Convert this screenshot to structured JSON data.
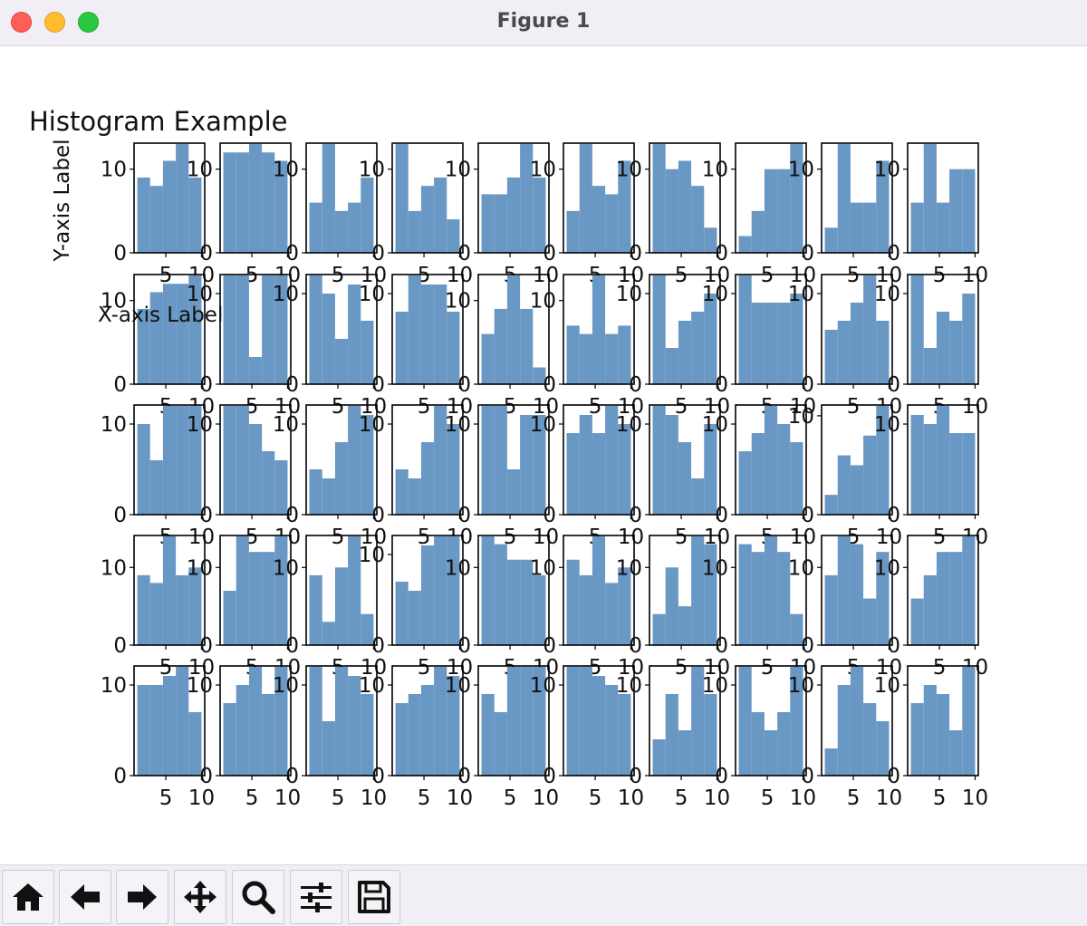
{
  "window": {
    "title": "Figure 1"
  },
  "toolbar": {
    "buttons": [
      {
        "name": "home-button",
        "icon": "home-icon"
      },
      {
        "name": "back-button",
        "icon": "arrow-left-icon"
      },
      {
        "name": "forward-button",
        "icon": "arrow-right-icon"
      },
      {
        "name": "pan-button",
        "icon": "move-icon"
      },
      {
        "name": "zoom-button",
        "icon": "magnifier-icon"
      },
      {
        "name": "configure-subplots-button",
        "icon": "sliders-icon"
      },
      {
        "name": "save-button",
        "icon": "floppy-disk-icon"
      }
    ]
  },
  "chart_data": {
    "type": "bar",
    "title": "Histogram Example",
    "xlabel": "X-axis Label",
    "ylabel": "Y-axis Label",
    "rows": 5,
    "cols": 10,
    "bar_color": "#6a98c4",
    "bin_edges": [
      1,
      2.8,
      4.6,
      6.4,
      8.2,
      10
    ],
    "xlim": [
      0.55,
      10.45
    ],
    "xticks": [
      "5",
      "10"
    ],
    "yticks": [
      "0",
      "10"
    ],
    "grid": false,
    "panels": [
      [
        9,
        8,
        11,
        13,
        9
      ],
      [
        12,
        12,
        13,
        12,
        11
      ],
      [
        6,
        13,
        5,
        6,
        9
      ],
      [
        13,
        5,
        8,
        9,
        4
      ],
      [
        7,
        7,
        9,
        13,
        9
      ],
      [
        5,
        13,
        8,
        7,
        11
      ],
      [
        13,
        10,
        11,
        8,
        3
      ],
      [
        2,
        5,
        10,
        10,
        13
      ],
      [
        3,
        13,
        6,
        6,
        11
      ],
      [
        6,
        13,
        6,
        10,
        10
      ],
      [
        9,
        11,
        12,
        12,
        13
      ],
      [
        12,
        12,
        3,
        12,
        12
      ],
      [
        12,
        10,
        5,
        11,
        7
      ],
      [
        8,
        12,
        11,
        11,
        8
      ],
      [
        6,
        9,
        13,
        9,
        2
      ],
      [
        7,
        6,
        13,
        6,
        7
      ],
      [
        12,
        4,
        7,
        8,
        10
      ],
      [
        12,
        9,
        9,
        9,
        10
      ],
      [
        6,
        7,
        9,
        12,
        7
      ],
      [
        12,
        4,
        8,
        7,
        10
      ],
      [
        10,
        6,
        12,
        12,
        12
      ],
      [
        12,
        12,
        10,
        7,
        6
      ],
      [
        5,
        4,
        8,
        12,
        11
      ],
      [
        5,
        4,
        8,
        12,
        10
      ],
      [
        12,
        12,
        5,
        11,
        11
      ],
      [
        9,
        11,
        9,
        12,
        10
      ],
      [
        12,
        11,
        8,
        4,
        10
      ],
      [
        7,
        9,
        12,
        10,
        8
      ],
      [
        2,
        6,
        5,
        8,
        11
      ],
      [
        11,
        10,
        12,
        9,
        9
      ],
      [
        9,
        8,
        14,
        9,
        10
      ],
      [
        7,
        14,
        12,
        12,
        14
      ],
      [
        9,
        3,
        10,
        14,
        4
      ],
      [
        7,
        6,
        11,
        12,
        12
      ],
      [
        14,
        13,
        11,
        11,
        9
      ],
      [
        11,
        9,
        14,
        8,
        10
      ],
      [
        4,
        10,
        5,
        14,
        13
      ],
      [
        13,
        12,
        14,
        12,
        4
      ],
      [
        9,
        14,
        13,
        6,
        12
      ],
      [
        6,
        9,
        12,
        12,
        14
      ],
      [
        10,
        10,
        11,
        12,
        7
      ],
      [
        8,
        10,
        12,
        9,
        12
      ],
      [
        12,
        6,
        12,
        11,
        9
      ],
      [
        8,
        9,
        10,
        12,
        11
      ],
      [
        9,
        7,
        12,
        12,
        12
      ],
      [
        12,
        12,
        11,
        10,
        9
      ],
      [
        4,
        9,
        5,
        12,
        9
      ],
      [
        12,
        7,
        5,
        7,
        12
      ],
      [
        3,
        10,
        12,
        8,
        6
      ],
      [
        8,
        10,
        9,
        5,
        12
      ]
    ]
  }
}
